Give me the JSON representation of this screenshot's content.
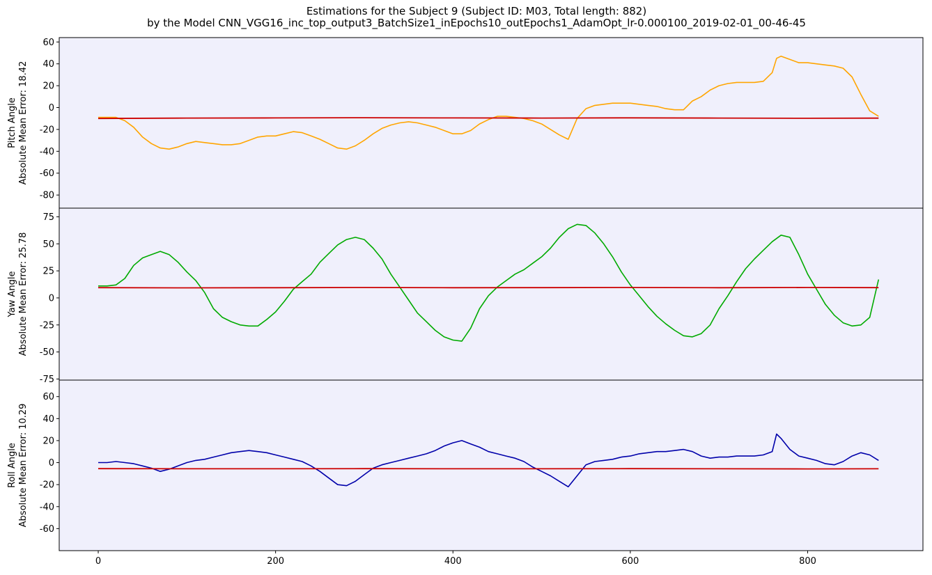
{
  "title_line1": "Estimations for the Subject 9 (Subject ID: M03, Total length: 882)",
  "title_line2": "by the Model CNN_VGG16_inc_top_output3_BatchSize1_inEpochs10_outEpochs1_AdamOpt_lr-0.000100_2019-02-01_00-46-45",
  "colors": {
    "background": "#f0f0fc",
    "estimate": "#cc0000",
    "pitch": "#ffa500",
    "yaw": "#00aa00",
    "roll": "#0000aa"
  },
  "chart_data": [
    {
      "type": "line",
      "ylabel_line1": "Pitch Angle",
      "ylabel_line2": "Absolute Mean Error: 18.42",
      "xlim": [
        -44,
        930
      ],
      "ylim": [
        -92,
        64
      ],
      "yticks": [
        60,
        40,
        20,
        0,
        -20,
        -40,
        -60,
        -80
      ],
      "xticks": [],
      "series": [
        {
          "color": "#ffa500",
          "x": [
            0,
            10,
            20,
            30,
            40,
            50,
            60,
            70,
            80,
            90,
            100,
            110,
            120,
            130,
            140,
            150,
            160,
            170,
            180,
            190,
            200,
            210,
            220,
            230,
            240,
            250,
            260,
            270,
            280,
            290,
            300,
            310,
            320,
            330,
            340,
            350,
            360,
            370,
            380,
            390,
            400,
            410,
            420,
            430,
            440,
            450,
            460,
            470,
            480,
            490,
            500,
            510,
            520,
            530,
            540,
            550,
            560,
            570,
            580,
            590,
            600,
            610,
            620,
            630,
            640,
            650,
            660,
            670,
            680,
            690,
            700,
            710,
            720,
            730,
            740,
            750,
            760,
            765,
            770,
            780,
            790,
            800,
            810,
            820,
            830,
            840,
            850,
            860,
            870,
            880
          ],
          "y": [
            -9,
            -9,
            -9,
            -12,
            -18,
            -27,
            -33,
            -37,
            -38,
            -36,
            -33,
            -31,
            -32,
            -33,
            -34,
            -34,
            -33,
            -30,
            -27,
            -26,
            -26,
            -24,
            -22,
            -23,
            -26,
            -29,
            -33,
            -37,
            -38,
            -35,
            -30,
            -24,
            -19,
            -16,
            -14,
            -13,
            -14,
            -16,
            -18,
            -21,
            -24,
            -24,
            -21,
            -15,
            -11,
            -8,
            -8,
            -9,
            -10,
            -12,
            -15,
            -20,
            -25,
            -29,
            -10,
            -1,
            2,
            3,
            4,
            4,
            4,
            3,
            2,
            1,
            -1,
            -2,
            -2,
            6,
            10,
            16,
            20,
            22,
            23,
            23,
            23,
            24,
            32,
            45,
            47,
            44,
            41,
            41,
            40,
            39,
            38,
            36,
            28,
            12,
            -3,
            -8
          ]
        },
        {
          "color": "#cc0000",
          "x": [
            0,
            100,
            200,
            300,
            400,
            500,
            600,
            700,
            800,
            880
          ],
          "y": [
            -10,
            -9.6,
            -9.5,
            -9.3,
            -9.5,
            -9.6,
            -9.4,
            -9.6,
            -9.8,
            -9.7
          ]
        }
      ]
    },
    {
      "type": "line",
      "ylabel_line1": "Yaw Angle",
      "ylabel_line2": "Absolute Mean Error: 25.78",
      "xlim": [
        -44,
        930
      ],
      "ylim": [
        -76,
        83
      ],
      "yticks": [
        75,
        50,
        25,
        0,
        -25,
        -50,
        -75
      ],
      "xticks": [],
      "series": [
        {
          "color": "#00aa00",
          "x": [
            0,
            10,
            20,
            30,
            40,
            50,
            60,
            70,
            80,
            90,
            100,
            110,
            120,
            130,
            140,
            150,
            160,
            170,
            180,
            190,
            200,
            210,
            220,
            230,
            240,
            250,
            260,
            270,
            280,
            290,
            300,
            310,
            320,
            330,
            340,
            350,
            360,
            370,
            380,
            390,
            400,
            410,
            420,
            430,
            440,
            450,
            460,
            470,
            480,
            490,
            500,
            510,
            520,
            530,
            540,
            550,
            560,
            570,
            580,
            590,
            600,
            610,
            620,
            630,
            640,
            650,
            660,
            670,
            680,
            690,
            700,
            710,
            720,
            730,
            740,
            750,
            760,
            770,
            780,
            790,
            800,
            810,
            820,
            830,
            840,
            850,
            860,
            870,
            880
          ],
          "y": [
            11,
            11,
            12,
            18,
            30,
            37,
            40,
            43,
            40,
            33,
            24,
            16,
            5,
            -10,
            -18,
            -22,
            -25,
            -26,
            -26,
            -20,
            -13,
            -3,
            8,
            15,
            22,
            33,
            41,
            49,
            54,
            56,
            54,
            46,
            36,
            22,
            10,
            -2,
            -14,
            -22,
            -30,
            -36,
            -39,
            -40,
            -28,
            -10,
            2,
            10,
            16,
            22,
            26,
            32,
            38,
            46,
            56,
            64,
            68,
            67,
            60,
            50,
            38,
            24,
            12,
            2,
            -8,
            -17,
            -24,
            -30,
            -35,
            -36,
            -33,
            -25,
            -10,
            2,
            15,
            27,
            36,
            44,
            52,
            58,
            56,
            40,
            22,
            8,
            -6,
            -16,
            -23,
            -26,
            -25,
            -18,
            17
          ]
        },
        {
          "color": "#cc0000",
          "x": [
            0,
            100,
            200,
            300,
            400,
            500,
            600,
            700,
            800,
            880
          ],
          "y": [
            9.5,
            9.3,
            9.4,
            9.6,
            9.4,
            9.5,
            9.6,
            9.4,
            9.6,
            9.5
          ]
        }
      ]
    },
    {
      "type": "line",
      "ylabel_line1": "Roll Angle",
      "ylabel_line2": "Absolute Mean Error: 10.29",
      "xlim": [
        -44,
        930
      ],
      "ylim": [
        -80,
        75
      ],
      "yticks": [
        60,
        40,
        20,
        0,
        -20,
        -40,
        -60
      ],
      "xticks": [
        0,
        200,
        400,
        600,
        800
      ],
      "series": [
        {
          "color": "#0000aa",
          "x": [
            0,
            10,
            20,
            30,
            40,
            50,
            60,
            70,
            80,
            90,
            100,
            110,
            120,
            130,
            140,
            150,
            160,
            170,
            180,
            190,
            200,
            210,
            220,
            230,
            240,
            250,
            260,
            270,
            280,
            290,
            300,
            310,
            320,
            330,
            340,
            350,
            360,
            370,
            380,
            390,
            400,
            410,
            420,
            430,
            440,
            450,
            460,
            470,
            480,
            490,
            500,
            510,
            520,
            530,
            540,
            550,
            560,
            570,
            580,
            590,
            600,
            610,
            620,
            630,
            640,
            650,
            660,
            670,
            680,
            690,
            700,
            710,
            720,
            730,
            740,
            750,
            760,
            765,
            770,
            780,
            790,
            800,
            810,
            820,
            830,
            840,
            850,
            860,
            870,
            880
          ],
          "y": [
            0,
            0,
            1,
            0,
            -1,
            -3,
            -5,
            -8,
            -6,
            -3,
            0,
            2,
            3,
            5,
            7,
            9,
            10,
            11,
            10,
            9,
            7,
            5,
            3,
            1,
            -3,
            -8,
            -14,
            -20,
            -21,
            -17,
            -11,
            -5,
            -2,
            0,
            2,
            4,
            6,
            8,
            11,
            15,
            18,
            20,
            17,
            14,
            10,
            8,
            6,
            4,
            1,
            -4,
            -8,
            -12,
            -17,
            -22,
            -12,
            -2,
            1,
            2,
            3,
            5,
            6,
            8,
            9,
            10,
            10,
            11,
            12,
            10,
            6,
            4,
            5,
            5,
            6,
            6,
            6,
            7,
            10,
            26,
            22,
            12,
            6,
            4,
            2,
            -1,
            -2,
            1,
            6,
            9,
            7,
            2
          ]
        },
        {
          "color": "#cc0000",
          "x": [
            0,
            100,
            200,
            300,
            400,
            500,
            600,
            700,
            800,
            880
          ],
          "y": [
            -5.5,
            -5.6,
            -5.6,
            -5.5,
            -5.6,
            -5.6,
            -5.5,
            -5.6,
            -5.7,
            -5.6
          ]
        }
      ]
    }
  ]
}
